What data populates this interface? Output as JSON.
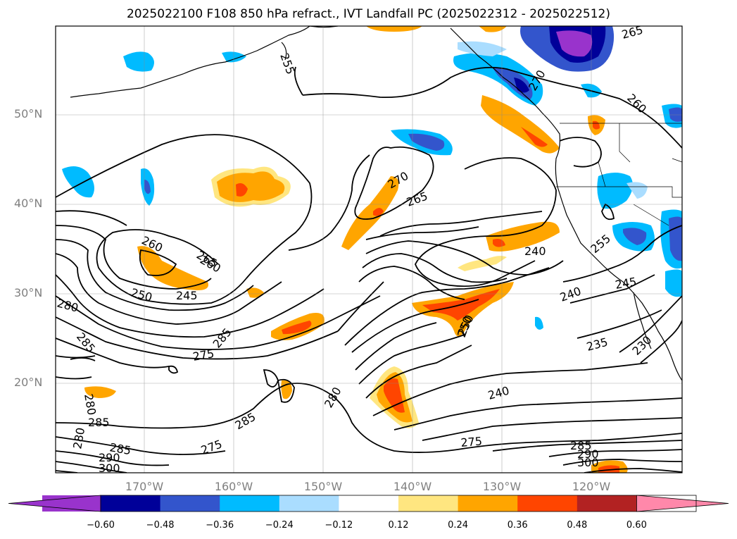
{
  "title": "2025022100 F108 850 hPa refract., IVT Landfall PC (2025022312 - 2025022512)",
  "latitudes": [
    "50°N",
    "40°N",
    "30°N",
    "20°N"
  ],
  "longitudes": [
    "170°W",
    "160°W",
    "150°W",
    "140°W",
    "130°W",
    "120°W"
  ],
  "contour_labels": [
    "265",
    "255",
    "260",
    "265",
    "270",
    "270",
    "265",
    "260",
    "255",
    "250",
    "245",
    "260",
    "240",
    "240",
    "250",
    "245",
    "250",
    "280",
    "285",
    "285",
    "275",
    "240",
    "235",
    "230",
    "280",
    "280",
    "285",
    "285",
    "275",
    "285",
    "290",
    "300",
    "275",
    "280",
    "285",
    "290",
    "300"
  ],
  "colorbar": {
    "ticks": [
      "−0.60",
      "−0.48",
      "−0.36",
      "−0.24",
      "−0.12",
      "0.12",
      "0.24",
      "0.36",
      "0.48",
      "0.60"
    ],
    "colors": [
      "#9933cc",
      "#000099",
      "#3355cc",
      "#00bbff",
      "#aaddff",
      "#ffffff",
      "#ffe680",
      "#ffa500",
      "#ff4500",
      "#b22222",
      "#ff88aa"
    ]
  },
  "chart_data": {
    "type": "map",
    "title": "2025022100 F108 850 hPa refract., IVT Landfall PC (2025022312 - 2025022512)",
    "lat_range": [
      10,
      60
    ],
    "lon_range": [
      -180,
      -110
    ],
    "colorbar_ticks": [
      -0.6,
      -0.48,
      -0.36,
      -0.24,
      -0.12,
      0.12,
      0.24,
      0.36,
      0.48,
      0.6
    ],
    "contour_levels": [
      230,
      235,
      240,
      245,
      250,
      255,
      260,
      265,
      270,
      275,
      280,
      285,
      290,
      300
    ]
  }
}
